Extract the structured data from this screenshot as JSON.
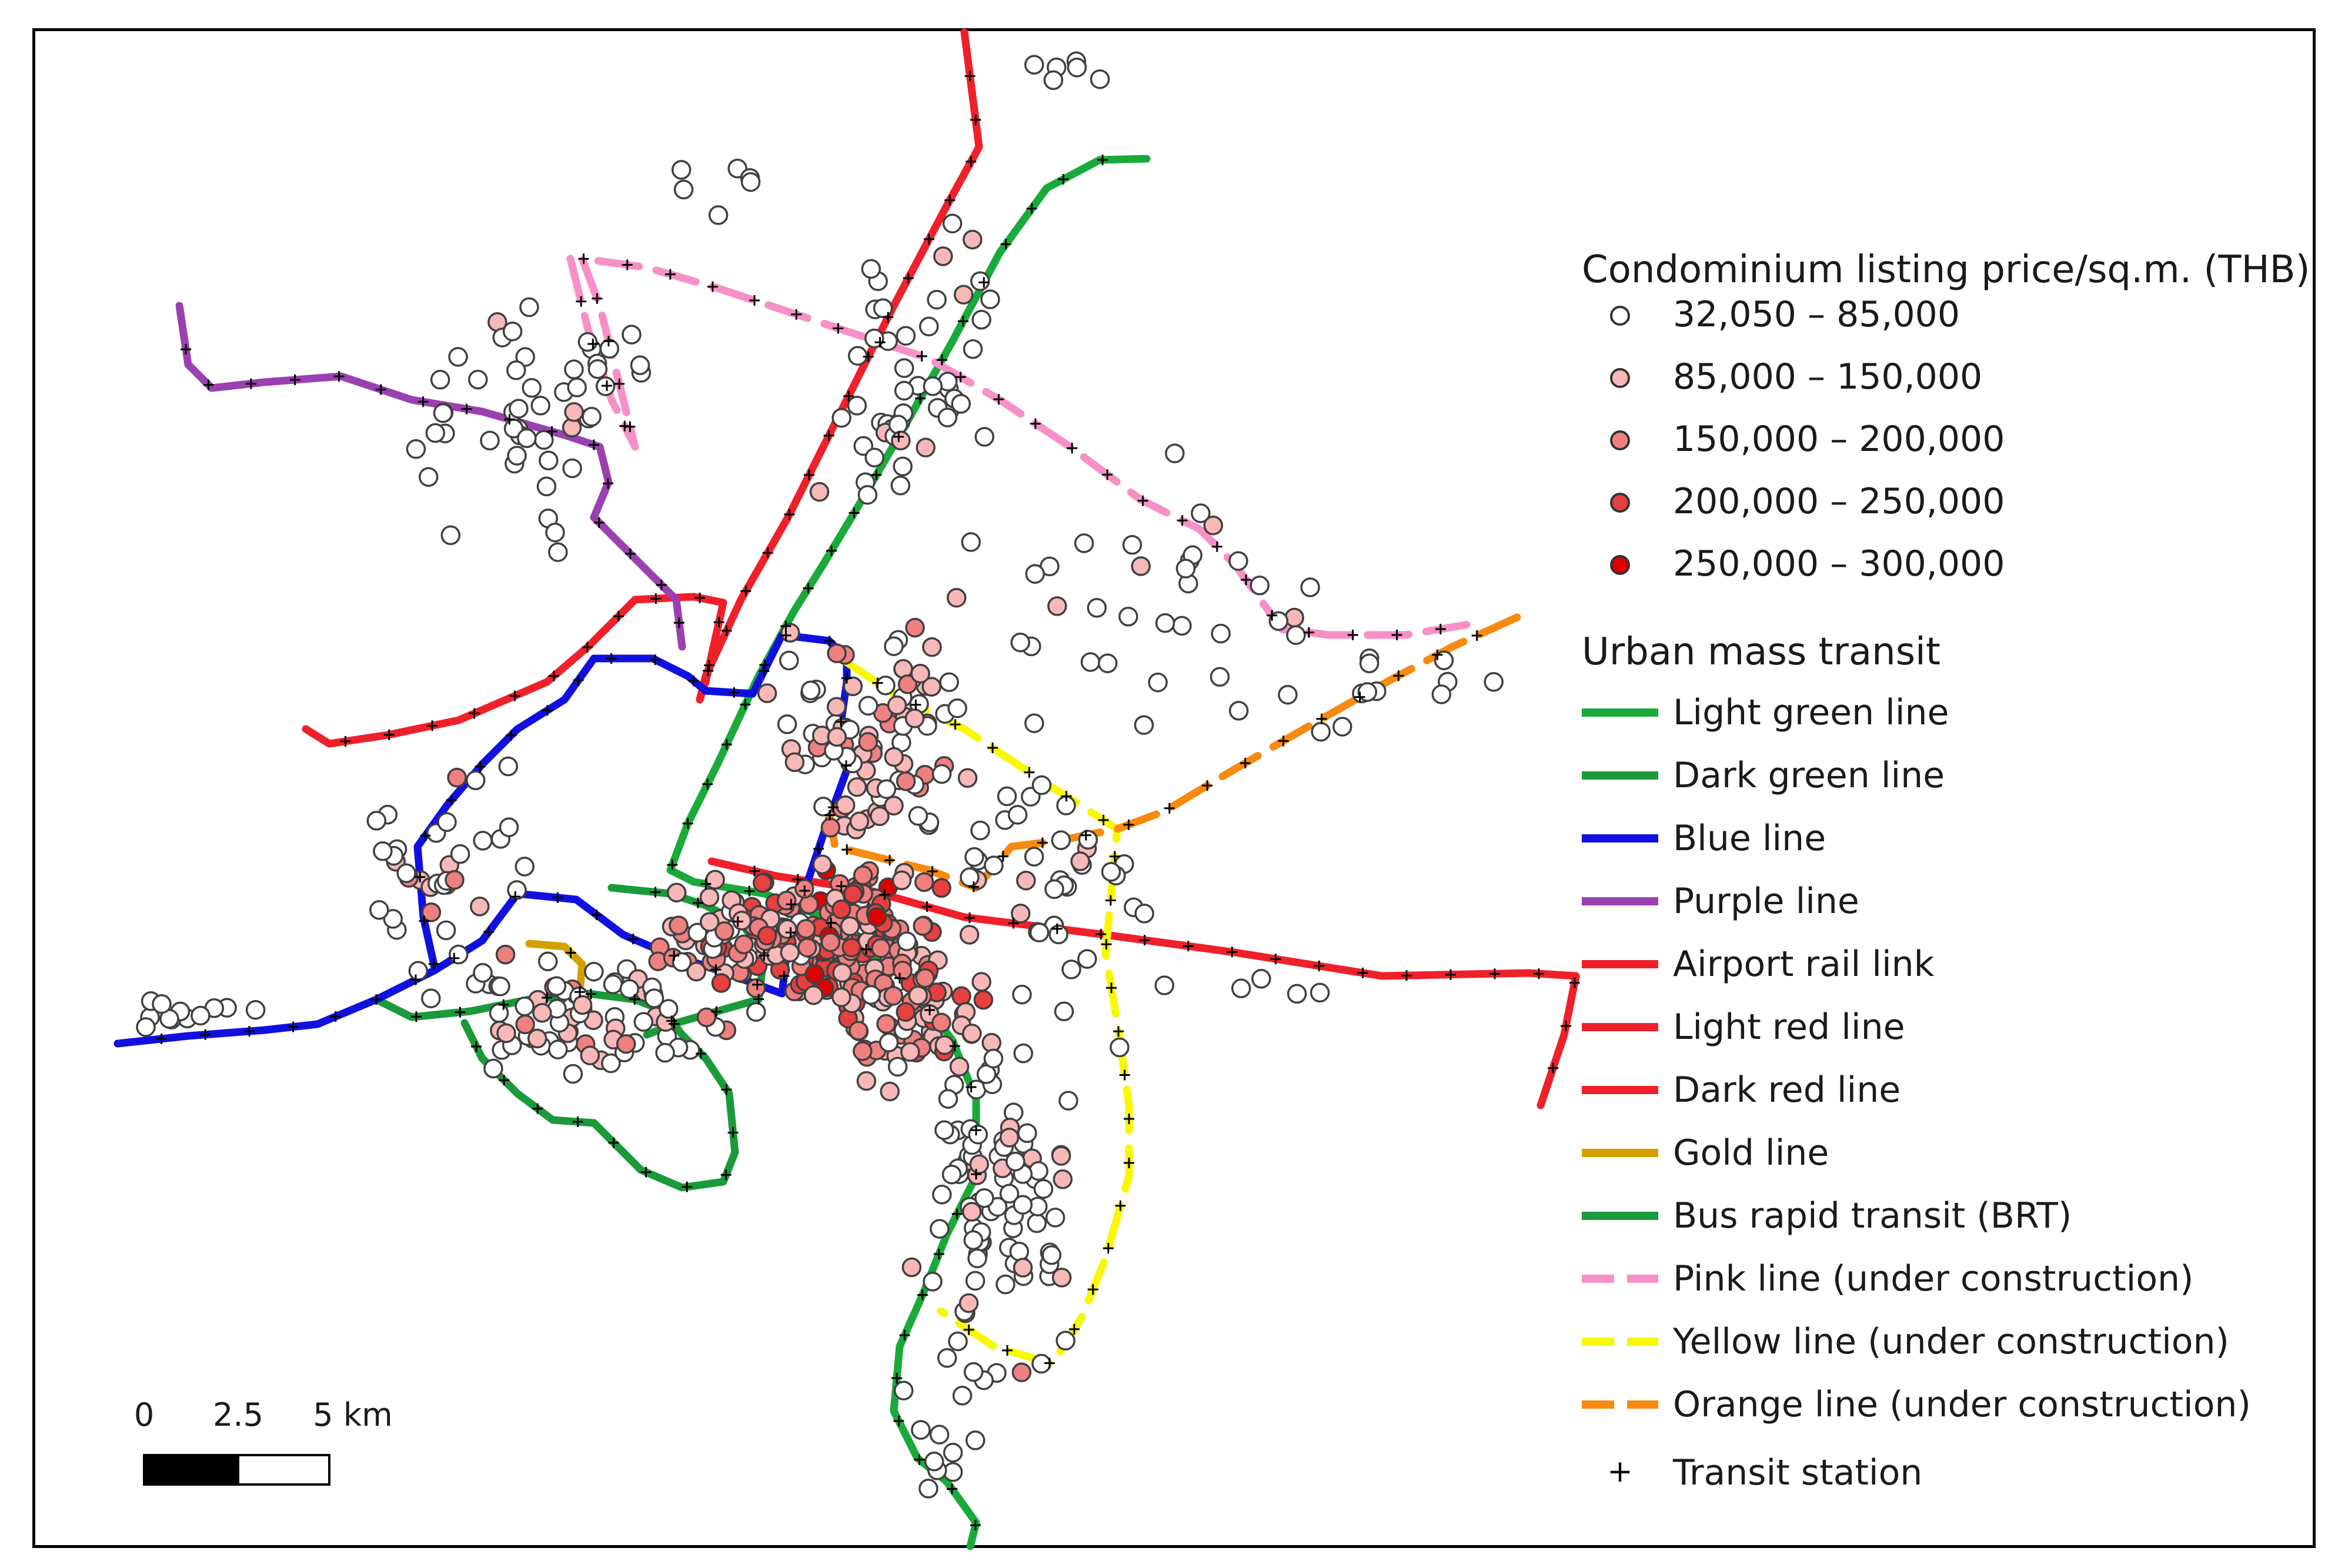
{
  "legend": {
    "price_title": "Condominium listing price/sq.m. (THB)",
    "price_classes": [
      {
        "label": "32,050 – 85,000",
        "color": "#ffffff"
      },
      {
        "label": "85,000 – 150,000",
        "color": "#f8b8b8"
      },
      {
        "label": "150,000 – 200,000",
        "color": "#f08080"
      },
      {
        "label": "200,000 – 250,000",
        "color": "#e84040"
      },
      {
        "label": "250,000 – 300,000",
        "color": "#e00000"
      }
    ],
    "transit_title": "Urban mass transit",
    "lines": [
      {
        "label": "Light green line",
        "color": "#1aaa3a",
        "dashed": false
      },
      {
        "label": "Dark green line",
        "color": "#1a9a3a",
        "dashed": false
      },
      {
        "label": "Blue line",
        "color": "#1010e0",
        "dashed": false
      },
      {
        "label": "Purple line",
        "color": "#9a40b0",
        "dashed": false
      },
      {
        "label": "Airport rail link",
        "color": "#f0202a",
        "dashed": false
      },
      {
        "label": "Light red line",
        "color": "#f0202a",
        "dashed": false
      },
      {
        "label": "Dark red line",
        "color": "#f0202a",
        "dashed": false
      },
      {
        "label": "Gold line",
        "color": "#d4a000",
        "dashed": false
      },
      {
        "label": "Bus rapid transit (BRT)",
        "color": "#1a9a3a",
        "dashed": false
      },
      {
        "label": "Pink line (under construction)",
        "color": "#f890c8",
        "dashed": true
      },
      {
        "label": "Yellow line (under construction)",
        "color": "#f8f800",
        "dashed": true
      },
      {
        "label": "Orange line (under construction)",
        "color": "#f88a10",
        "dashed": true
      }
    ],
    "station_label": "Transit station",
    "station_symbol": "+"
  },
  "scale_bar": {
    "labels": [
      "0",
      "2.5",
      "5 km"
    ]
  }
}
